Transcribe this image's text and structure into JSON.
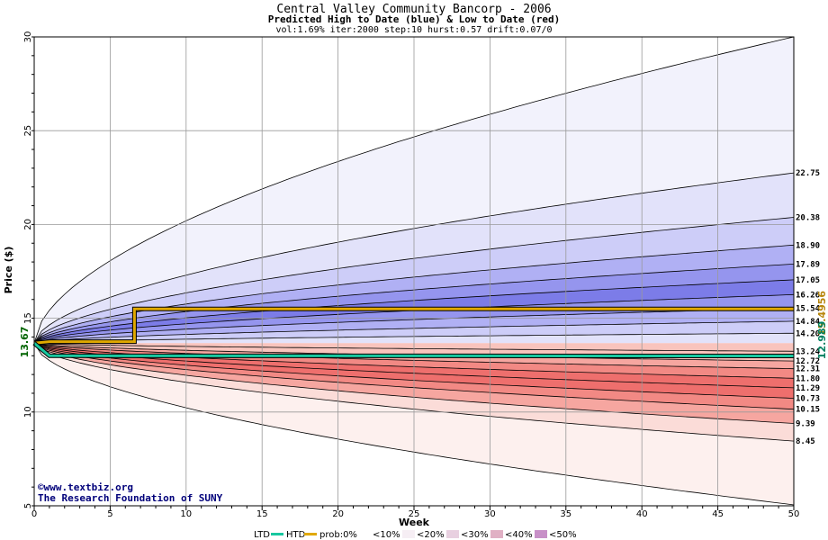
{
  "header": {
    "title": "Central Valley Community Bancorp - 2006",
    "subtitle": "Predicted High to Date (blue) &  Low to Date (red)",
    "params": "vol:1.69% iter:2000 step:10 hurst:0.57 drift:0.07/0"
  },
  "credits": {
    "copyright": "©www.textbiz.org",
    "foundation": "The Research Foundation of SUNY"
  },
  "legend": {
    "ltd": "LTD",
    "htd": "HTD",
    "prob": "prob:0%",
    "b10": "<10%",
    "b20": "<20%",
    "b30": "<30%",
    "b40": "<40%",
    "b50": "<50%"
  },
  "colors": {
    "blue_bands": [
      "#f2f2fc",
      "#e2e2fa",
      "#cdcdf8",
      "#b0b0f4",
      "#9595ee",
      "#7c7ce8"
    ],
    "red_bands": [
      "#fdf0ee",
      "#fbdcd8",
      "#f9c4bd",
      "#f6a6a0",
      "#f28984",
      "#ee6f6d"
    ],
    "htd_line": "#e0a800",
    "ltd_line": "#18c8a0",
    "start_label": "#006400",
    "htd_label": "#b8860b",
    "ltd_label": "#008060"
  },
  "chart_data": {
    "type": "area",
    "title": "Central Valley Community Bancorp - 2006",
    "xlabel": "Week",
    "ylabel": "Price ($)",
    "xlim": [
      0,
      50
    ],
    "ylim": [
      5,
      30
    ],
    "x_ticks": [
      0,
      5,
      10,
      15,
      20,
      25,
      30,
      35,
      40,
      45,
      50
    ],
    "y_ticks": [
      5,
      10,
      15,
      20,
      25,
      30
    ],
    "grid": true,
    "start_price": "13.67",
    "upper_bands": [
      {
        "name": "0%",
        "end": 30.0,
        "end_label": ""
      },
      {
        "name": "<10%",
        "end": 22.75,
        "end_label": "22.75"
      },
      {
        "name": "<20%",
        "end": 20.38,
        "end_label": "20.38"
      },
      {
        "name": "<30%",
        "end": 18.9,
        "end_label": "18.90"
      },
      {
        "name": "<40%",
        "end": 17.89,
        "end_label": "17.89"
      },
      {
        "name": "<50%",
        "end": 17.05,
        "end_label": "17.05"
      },
      {
        "name": "<50%",
        "end": 16.26,
        "end_label": "16.26"
      },
      {
        "name": "<50%",
        "end": 15.54,
        "end_label": "15.54"
      },
      {
        "name": "<40%",
        "end": 14.84,
        "end_label": "14.84"
      },
      {
        "name": "<30%",
        "end": 14.2,
        "end_label": "14.20"
      },
      {
        "name": "<20%",
        "end": 13.24,
        "end_label": "13.24"
      }
    ],
    "lower_bands": [
      {
        "name": "<20%",
        "end": 12.72,
        "end_label": "12.72"
      },
      {
        "name": "<30%",
        "end": 12.31,
        "end_label": "12.31"
      },
      {
        "name": "<40%",
        "end": 11.8,
        "end_label": "11.80"
      },
      {
        "name": "<50%",
        "end": 11.29,
        "end_label": "11.29"
      },
      {
        "name": "<50%",
        "end": 10.73,
        "end_label": "10.73"
      },
      {
        "name": "<40%",
        "end": 10.15,
        "end_label": "10.15"
      },
      {
        "name": "<30%",
        "end": 9.39,
        "end_label": "9.39"
      },
      {
        "name": "<10%",
        "end": 8.45,
        "end_label": "8.45"
      },
      {
        "name": "0%",
        "end": 5.05,
        "end_label": ""
      }
    ],
    "htd": {
      "name": "HTD",
      "label": "15.4956",
      "points": [
        [
          0,
          13.67
        ],
        [
          1,
          13.75
        ],
        [
          6.6,
          13.75
        ],
        [
          6.6,
          15.5
        ],
        [
          50,
          15.5
        ]
      ]
    },
    "ltd": {
      "name": "LTD",
      "label": "12.989",
      "points": [
        [
          0,
          13.67
        ],
        [
          1,
          13.0
        ],
        [
          50,
          12.99
        ]
      ]
    }
  }
}
